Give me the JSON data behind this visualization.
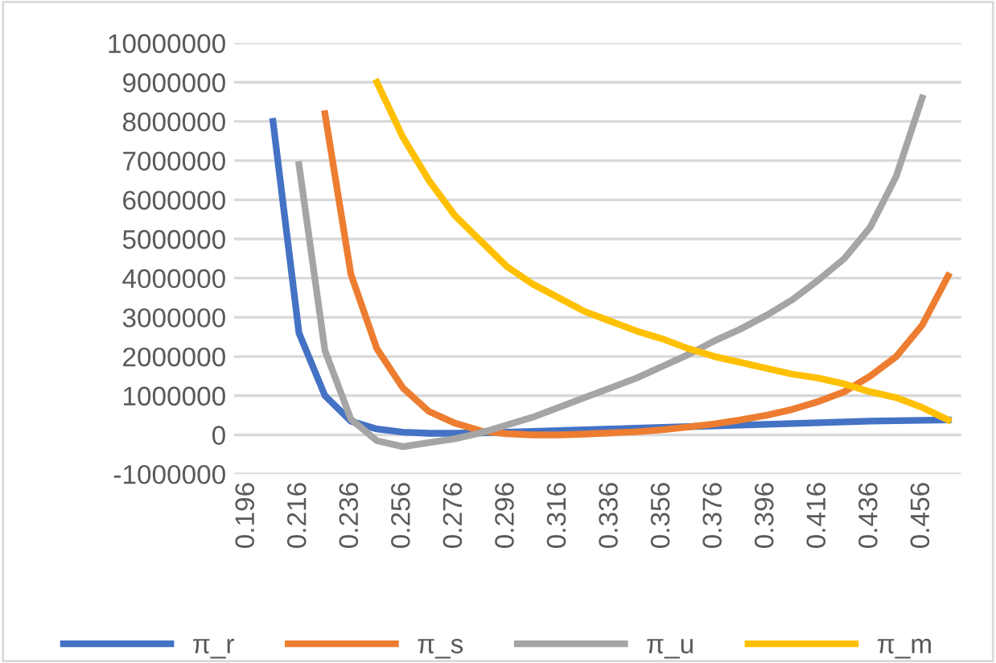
{
  "chart_data": {
    "type": "line",
    "categories": [
      "0.196",
      null,
      "0.216",
      null,
      "0.236",
      null,
      "0.256",
      null,
      "0.276",
      null,
      "0.296",
      null,
      "0.316",
      null,
      "0.336",
      null,
      "0.356",
      null,
      "0.376",
      null,
      "0.396",
      null,
      "0.416",
      null,
      "0.436",
      null,
      "0.456",
      null
    ],
    "series": [
      {
        "name": "π_r",
        "color": "#4472c4",
        "values": [
          null,
          8000000,
          2600000,
          1000000,
          350000,
          150000,
          70000,
          40000,
          40000,
          50000,
          70000,
          90000,
          110000,
          130000,
          150000,
          170000,
          190000,
          210000,
          230000,
          250000,
          270000,
          290000,
          310000,
          330000,
          350000,
          360000,
          370000,
          380000
        ]
      },
      {
        "name": "π_s",
        "color": "#ed7d31",
        "values": [
          null,
          null,
          null,
          8200000,
          4100000,
          2200000,
          1200000,
          600000,
          300000,
          100000,
          30000,
          0,
          0,
          20000,
          50000,
          80000,
          130000,
          200000,
          280000,
          380000,
          500000,
          650000,
          850000,
          1100000,
          1500000,
          2000000,
          2800000,
          4060000
        ]
      },
      {
        "name": "π_u",
        "color": "#a5a5a5",
        "values": [
          null,
          null,
          6900000,
          2150000,
          400000,
          -150000,
          -300000,
          -200000,
          -100000,
          50000,
          250000,
          450000,
          700000,
          950000,
          1200000,
          1450000,
          1750000,
          2050000,
          2400000,
          2700000,
          3050000,
          3450000,
          3950000,
          4500000,
          5300000,
          6600000,
          8600000,
          null
        ]
      },
      {
        "name": "π_m",
        "color": "#ffc000",
        "values": [
          null,
          null,
          null,
          null,
          null,
          9000000,
          7600000,
          6500000,
          5600000,
          4950000,
          4300000,
          3850000,
          3500000,
          3150000,
          2900000,
          2650000,
          2450000,
          2200000,
          2000000,
          1850000,
          1700000,
          1550000,
          1450000,
          1300000,
          1100000,
          950000,
          700000,
          380000
        ]
      }
    ],
    "ylim": [
      -1000000,
      10000000
    ],
    "yticks": [
      -1000000,
      0,
      1000000,
      2000000,
      3000000,
      4000000,
      5000000,
      6000000,
      7000000,
      8000000,
      9000000,
      10000000
    ],
    "grid": "y",
    "legend": "bottom"
  }
}
